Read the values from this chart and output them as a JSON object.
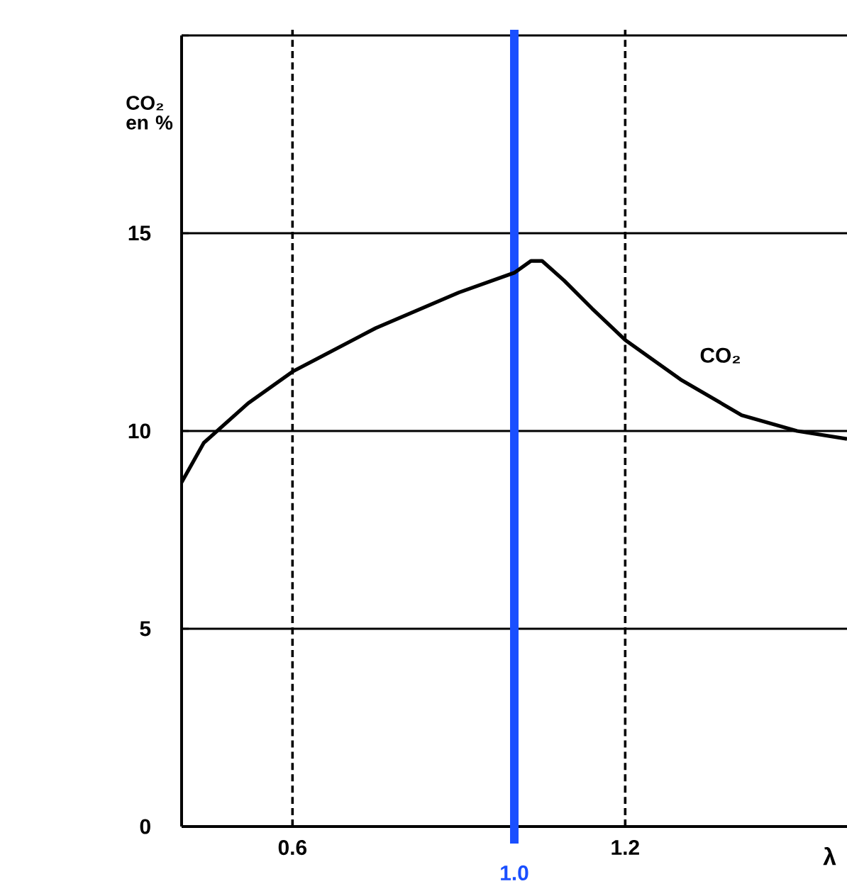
{
  "chart_data": {
    "type": "line",
    "ylabel": "CO₂ en %",
    "xlabel": "λ",
    "xlim": [
      0.4,
      1.6
    ],
    "ylim": [
      0,
      20
    ],
    "xticks": [
      0.6,
      1.2
    ],
    "yticks": [
      0,
      5,
      10,
      15,
      {
        "value": 20,
        "label": null
      }
    ],
    "grid": "y",
    "x": [
      0.4,
      0.44,
      0.52,
      0.6,
      0.75,
      0.9,
      1.0,
      1.03,
      1.05,
      1.09,
      1.14,
      1.2,
      1.3,
      1.41,
      1.51,
      1.6
    ],
    "series": [
      {
        "name": "CO₂",
        "color": "#000000",
        "values": [
          8.7,
          9.7,
          10.7,
          11.5,
          12.6,
          13.5,
          14.0,
          14.3,
          14.3,
          13.8,
          13.1,
          12.3,
          11.3,
          10.4,
          10.0,
          9.8
        ]
      }
    ],
    "ref_lines": [
      {
        "axis": "x",
        "value": 0.6,
        "color": "#000000",
        "line_style": "dashed"
      },
      {
        "axis": "x",
        "value": 1.2,
        "color": "#000000",
        "line_style": "dashed"
      },
      {
        "axis": "x",
        "value": 1.0,
        "label": "1.0",
        "color": "#1a4fff",
        "line_style": "solid"
      }
    ]
  }
}
